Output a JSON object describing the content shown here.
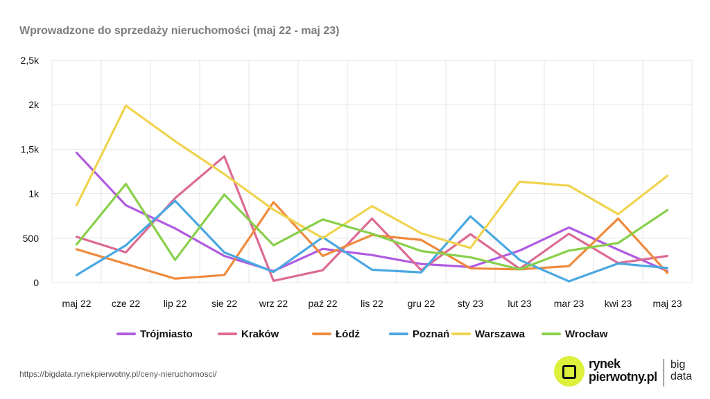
{
  "page": {
    "title": "Wprowadzone do sprzedaży nieruchomości (maj 22 - maj 23)",
    "source_url": "https://bigdata.rynekpierwotny.pl/ceny-nieruchomosci/",
    "logo": {
      "line1": "rynek",
      "line2": "pierwotny.pl",
      "bd1": "big",
      "bd2": "data"
    }
  },
  "chart_data": {
    "type": "line",
    "title": "Wprowadzone do sprzedaży nieruchomości (maj 22 - maj 23)",
    "categories": [
      "maj 22",
      "cze 22",
      "lip 22",
      "sie 22",
      "wrz 22",
      "paź 22",
      "lis 22",
      "gru 22",
      "sty 23",
      "lut 23",
      "mar 23",
      "kwi 23",
      "maj 23"
    ],
    "ylim": [
      0,
      2500
    ],
    "yticks": [
      {
        "value": 0,
        "label": "0"
      },
      {
        "value": 500,
        "label": "500"
      },
      {
        "value": 1000,
        "label": "1k"
      },
      {
        "value": 1500,
        "label": "1,5k"
      },
      {
        "value": 2000,
        "label": "2k"
      },
      {
        "value": 2500,
        "label": "2,5k"
      }
    ],
    "grid": true,
    "legend": "bottom",
    "series": [
      {
        "name": "Trójmiasto",
        "color": "#b05be0",
        "values": [
          1460,
          870,
          610,
          300,
          130,
          380,
          310,
          210,
          175,
          360,
          620,
          370,
          130
        ]
      },
      {
        "name": "Kraków",
        "color": "#dc6a93",
        "values": [
          515,
          340,
          950,
          1420,
          20,
          140,
          720,
          140,
          545,
          155,
          550,
          220,
          300
        ]
      },
      {
        "name": "Łódź",
        "color": "#ef8a3c",
        "values": [
          375,
          210,
          45,
          85,
          905,
          300,
          535,
          480,
          160,
          150,
          185,
          720,
          110
        ]
      },
      {
        "name": "Poznań",
        "color": "#4aa8e2",
        "values": [
          85,
          420,
          920,
          340,
          120,
          510,
          145,
          115,
          745,
          255,
          15,
          215,
          165
        ]
      },
      {
        "name": "Warszawa",
        "color": "#f0d34e",
        "values": [
          870,
          1990,
          1590,
          1220,
          820,
          500,
          860,
          555,
          390,
          1135,
          1090,
          770,
          1200
        ]
      },
      {
        "name": "Wrocław",
        "color": "#88cf4a",
        "values": [
          430,
          1110,
          255,
          990,
          420,
          710,
          550,
          355,
          285,
          150,
          360,
          445,
          815
        ]
      }
    ]
  }
}
